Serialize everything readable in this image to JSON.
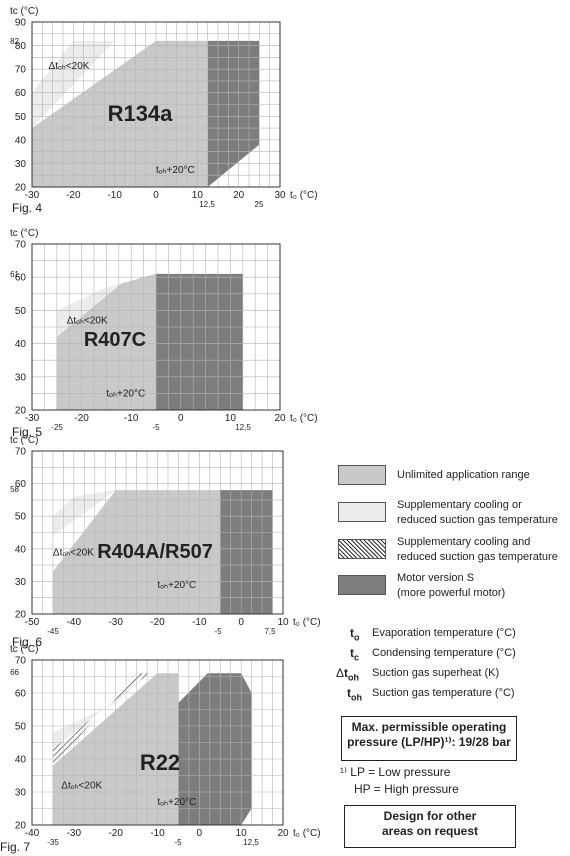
{
  "chart_data": [
    {
      "type": "area",
      "figure": "Fig. 4",
      "refrigerant": "R134a",
      "xlabel": "t₀ (°C)",
      "ylabel": "tc (°C)",
      "xlim": [
        -30,
        30
      ],
      "ylim": [
        20,
        90
      ],
      "x_ticks": [
        -30,
        -20,
        -10,
        0,
        10,
        20,
        30
      ],
      "y_ticks": [
        20,
        30,
        40,
        50,
        60,
        70,
        80,
        90
      ],
      "extra_x_ticks": [
        "12,5",
        "25"
      ],
      "extra_y_ticks": [
        "82"
      ],
      "annotations": [
        "Δtₒₕ<20K",
        "tₒₕ+20°C"
      ],
      "regions": [
        {
          "kind": "supplementary",
          "points": [
            [
              -30,
              60
            ],
            [
              -20,
              82
            ],
            [
              -10,
              82
            ],
            [
              -30,
              45
            ]
          ]
        },
        {
          "kind": "unlimited",
          "points": [
            [
              -30,
              20
            ],
            [
              -30,
              45
            ],
            [
              0,
              82
            ],
            [
              12.5,
              82
            ],
            [
              12.5,
              20
            ]
          ]
        },
        {
          "kind": "motor_s",
          "points": [
            [
              12.5,
              20
            ],
            [
              12.5,
              82
            ],
            [
              25,
              82
            ],
            [
              25,
              38
            ]
          ]
        }
      ]
    },
    {
      "type": "area",
      "figure": "Fig. 5",
      "refrigerant": "R407C",
      "xlabel": "t₀ (°C)",
      "ylabel": "tc (°C)",
      "xlim": [
        -30,
        20
      ],
      "ylim": [
        20,
        70
      ],
      "x_ticks": [
        -30,
        -20,
        -10,
        0,
        10,
        20
      ],
      "y_ticks": [
        20,
        30,
        40,
        50,
        60,
        70
      ],
      "extra_x_ticks": [
        "-25",
        "-5",
        "12,5"
      ],
      "extra_y_ticks": [
        "61"
      ],
      "annotations": [
        "Δtₒₕ<20K",
        "tₒₕ+20°C"
      ],
      "regions": [
        {
          "kind": "supplementary",
          "points": [
            [
              -25,
              50
            ],
            [
              -15,
              57
            ],
            [
              -5,
              61
            ],
            [
              -25,
              42
            ]
          ]
        },
        {
          "kind": "unlimited",
          "points": [
            [
              -25,
              20
            ],
            [
              -25,
              42
            ],
            [
              -12,
              58
            ],
            [
              -5,
              61
            ],
            [
              -5,
              20
            ]
          ]
        },
        {
          "kind": "motor_s",
          "points": [
            [
              -5,
              20
            ],
            [
              -5,
              61
            ],
            [
              12.5,
              61
            ],
            [
              12.5,
              20
            ]
          ]
        }
      ]
    },
    {
      "type": "area",
      "figure": "Fig. 6",
      "refrigerant": "R404A/R507",
      "xlabel": "t₀ (°C)",
      "ylabel": "tc (°C)",
      "xlim": [
        -50,
        10
      ],
      "ylim": [
        20,
        70
      ],
      "x_ticks": [
        -50,
        -40,
        -30,
        -20,
        -10,
        0,
        10
      ],
      "y_ticks": [
        20,
        30,
        40,
        50,
        60,
        70
      ],
      "extra_x_ticks": [
        "-45",
        "-5",
        "7,5"
      ],
      "extra_y_ticks": [
        "58"
      ],
      "annotations": [
        "Δtₒₕ<20K",
        "tₒₕ+20°C"
      ],
      "regions": [
        {
          "kind": "supplementary",
          "points": [
            [
              -45,
              50
            ],
            [
              -40,
              56
            ],
            [
              -30,
              58
            ],
            [
              -45,
              44
            ]
          ]
        },
        {
          "kind": "unlimited",
          "points": [
            [
              -45,
              20
            ],
            [
              -45,
              33
            ],
            [
              -30,
              58
            ],
            [
              -5,
              58
            ],
            [
              -5,
              20
            ]
          ]
        },
        {
          "kind": "motor_s",
          "points": [
            [
              -5,
              20
            ],
            [
              -5,
              58
            ],
            [
              7.5,
              58
            ],
            [
              7.5,
              20
            ]
          ]
        }
      ]
    },
    {
      "type": "area",
      "figure": "Fig. 7",
      "refrigerant": "R22",
      "xlabel": "t₀ (°C)",
      "ylabel": "tc (°C)",
      "xlim": [
        -40,
        20
      ],
      "ylim": [
        20,
        70
      ],
      "x_ticks": [
        -40,
        -30,
        -20,
        -10,
        0,
        10,
        20
      ],
      "y_ticks": [
        20,
        30,
        40,
        50,
        60,
        70
      ],
      "extra_x_ticks": [
        "-35",
        "-5",
        "12,5"
      ],
      "extra_y_ticks": [
        "66"
      ],
      "annotations": [
        "Δtₒₕ<20K",
        "tₒₕ+20°C"
      ],
      "regions": [
        {
          "kind": "supplementary_hatched",
          "points": [
            [
              -35,
              43
            ],
            [
              -35,
              38
            ],
            [
              -15,
              66
            ],
            [
              -12,
              66
            ]
          ]
        },
        {
          "kind": "supplementary",
          "points": [
            [
              -35,
              48
            ],
            [
              -20,
              57
            ],
            [
              -12,
              66
            ],
            [
              -35,
              43
            ]
          ]
        },
        {
          "kind": "unlimited",
          "points": [
            [
              -35,
              20
            ],
            [
              -35,
              38
            ],
            [
              -10,
              66
            ],
            [
              -5,
              66
            ],
            [
              -5,
              20
            ]
          ]
        },
        {
          "kind": "motor_s",
          "points": [
            [
              -5,
              20
            ],
            [
              -5,
              57
            ],
            [
              2,
              66
            ],
            [
              10,
              66
            ],
            [
              12.5,
              60
            ],
            [
              12.5,
              25
            ],
            [
              10,
              20
            ]
          ]
        }
      ]
    }
  ],
  "legend": {
    "unlimited": "Unlimited application range",
    "supplementary_1": "Supplementary cooling or",
    "supplementary_2": "reduced suction gas temperature",
    "hatched_1": "Supplementary cooling and",
    "hatched_2": "reduced suction gas temperature",
    "motor_1": "Motor version S",
    "motor_2": "(more powerful motor)"
  },
  "symbols": {
    "to_desc": "Evaporation temperature (°C)",
    "tc_desc": "Condensing temperature (°C)",
    "dtoh_desc": "Suction gas superheat (K)",
    "toh_desc": "Suction gas temperature (°C)"
  },
  "pressure_box": {
    "line1": "Max. permissible operating",
    "line2": "pressure (LP/HP)¹⁾: 19/28 bar"
  },
  "footnote": {
    "line1": "¹⁾ LP = Low pressure",
    "line2": "HP = High pressure"
  },
  "design_box": {
    "line1": "Design for other",
    "line2": "areas on request"
  },
  "colors": {
    "unlimited": "#c9c9c9",
    "supplementary": "#ececec",
    "motor_s": "#7d7d7d",
    "grid": "#b5b5b5"
  }
}
